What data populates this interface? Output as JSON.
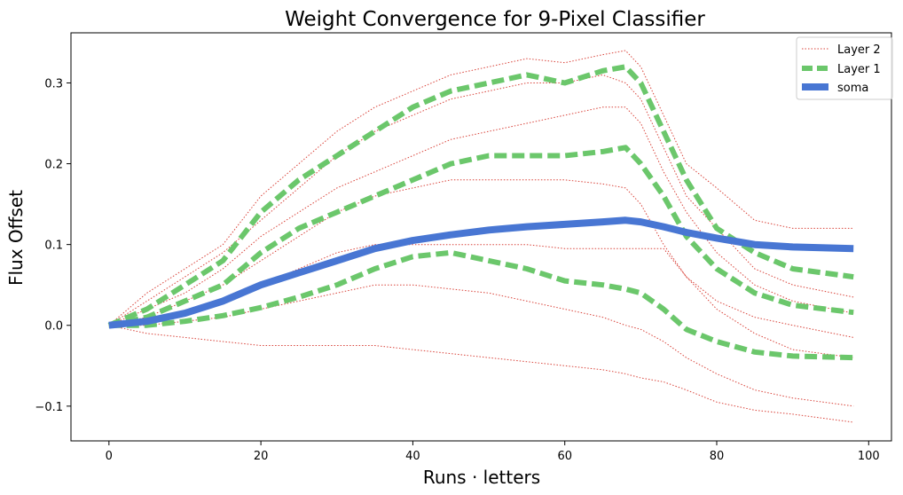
{
  "chart_data": {
    "type": "line",
    "title": "Weight Convergence for 9-Pixel Classifier",
    "xlabel": "Runs · letters",
    "ylabel": "Flux Offset",
    "xlim": [
      -5,
      103
    ],
    "ylim": [
      -0.143,
      0.362
    ],
    "xticks": [
      0,
      20,
      40,
      60,
      80,
      100
    ],
    "yticks": [
      -0.1,
      0.0,
      0.1,
      0.2,
      0.3
    ],
    "ytick_labels": [
      "−0.1",
      "0.0",
      "0.1",
      "0.2",
      "0.3"
    ],
    "grid": false,
    "legend_placement": "top-right",
    "colors": {
      "layer2": "#d9433a",
      "layer1": "#6bc76b",
      "soma": "#4876d3"
    },
    "series": [
      {
        "name": "Layer 2",
        "style": "dotted",
        "color": "#d9433a",
        "lines": [
          {
            "x": [
              0,
              5,
              10,
              15,
              20,
              25,
              30,
              35,
              40,
              45,
              50,
              55,
              60,
              65,
              68,
              70,
              73,
              76,
              80,
              85,
              90,
              98
            ],
            "y": [
              0,
              0.04,
              0.07,
              0.1,
              0.16,
              0.2,
              0.24,
              0.27,
              0.29,
              0.31,
              0.32,
              0.33,
              0.325,
              0.335,
              0.34,
              0.32,
              0.26,
              0.2,
              0.17,
              0.13,
              0.12,
              0.12
            ]
          },
          {
            "x": [
              0,
              5,
              10,
              15,
              20,
              25,
              30,
              35,
              40,
              45,
              50,
              55,
              60,
              65,
              68,
              70,
              73,
              76,
              80,
              85,
              90,
              98
            ],
            "y": [
              0,
              0.03,
              0.06,
              0.09,
              0.13,
              0.17,
              0.21,
              0.24,
              0.26,
              0.28,
              0.29,
              0.3,
              0.3,
              0.31,
              0.3,
              0.28,
              0.22,
              0.16,
              0.12,
              0.07,
              0.05,
              0.035
            ]
          },
          {
            "x": [
              0,
              5,
              10,
              15,
              20,
              25,
              30,
              35,
              40,
              45,
              50,
              55,
              60,
              65,
              68,
              70,
              73,
              76,
              80,
              85,
              90,
              98
            ],
            "y": [
              0,
              0.02,
              0.04,
              0.07,
              0.11,
              0.14,
              0.17,
              0.19,
              0.21,
              0.23,
              0.24,
              0.25,
              0.26,
              0.27,
              0.27,
              0.25,
              0.19,
              0.14,
              0.09,
              0.05,
              0.03,
              0.015
            ]
          },
          {
            "x": [
              0,
              5,
              10,
              15,
              20,
              25,
              30,
              35,
              40,
              45,
              50,
              55,
              60,
              65,
              68,
              70,
              73,
              76,
              80,
              85,
              90,
              98
            ],
            "y": [
              0,
              0.01,
              0.03,
              0.05,
              0.08,
              0.11,
              0.14,
              0.16,
              0.17,
              0.18,
              0.18,
              0.18,
              0.18,
              0.175,
              0.17,
              0.15,
              0.1,
              0.06,
              0.03,
              0.01,
              0.0,
              -0.015
            ]
          },
          {
            "x": [
              0,
              5,
              10,
              15,
              20,
              25,
              30,
              35,
              40,
              45,
              50,
              55,
              60,
              65,
              68,
              70,
              73,
              76,
              80,
              85,
              90,
              98
            ],
            "y": [
              0,
              0.005,
              0.015,
              0.03,
              0.05,
              0.07,
              0.09,
              0.1,
              0.1,
              0.1,
              0.1,
              0.1,
              0.095,
              0.095,
              0.095,
              0.095,
              0.095,
              0.06,
              0.02,
              -0.01,
              -0.03,
              -0.04
            ]
          },
          {
            "x": [
              0,
              5,
              10,
              15,
              20,
              25,
              30,
              35,
              40,
              45,
              50,
              55,
              60,
              65,
              68,
              70,
              73,
              76,
              80,
              85,
              90,
              98
            ],
            "y": [
              0,
              0.0,
              0.005,
              0.01,
              0.02,
              0.03,
              0.04,
              0.05,
              0.05,
              0.045,
              0.04,
              0.03,
              0.02,
              0.01,
              0.0,
              -0.005,
              -0.02,
              -0.04,
              -0.06,
              -0.08,
              -0.09,
              -0.1
            ]
          },
          {
            "x": [
              0,
              5,
              10,
              15,
              20,
              25,
              30,
              35,
              40,
              45,
              50,
              55,
              60,
              65,
              68,
              70,
              73,
              76,
              80,
              85,
              90,
              98
            ],
            "y": [
              0,
              -0.01,
              -0.015,
              -0.02,
              -0.025,
              -0.025,
              -0.025,
              -0.025,
              -0.03,
              -0.035,
              -0.04,
              -0.045,
              -0.05,
              -0.055,
              -0.06,
              -0.065,
              -0.07,
              -0.08,
              -0.095,
              -0.105,
              -0.11,
              -0.12
            ]
          }
        ]
      },
      {
        "name": "Layer 1",
        "style": "dashed",
        "color": "#6bc76b",
        "lines": [
          {
            "x": [
              0,
              5,
              10,
              15,
              20,
              25,
              30,
              35,
              40,
              45,
              50,
              55,
              60,
              65,
              68,
              70,
              73,
              76,
              80,
              85,
              90,
              98
            ],
            "y": [
              0,
              0.02,
              0.05,
              0.08,
              0.14,
              0.18,
              0.21,
              0.24,
              0.27,
              0.29,
              0.3,
              0.31,
              0.3,
              0.315,
              0.32,
              0.3,
              0.24,
              0.18,
              0.12,
              0.09,
              0.07,
              0.06
            ]
          },
          {
            "x": [
              0,
              5,
              10,
              15,
              20,
              25,
              30,
              35,
              40,
              45,
              50,
              55,
              60,
              65,
              68,
              70,
              73,
              76,
              80,
              85,
              90,
              98
            ],
            "y": [
              0,
              0.01,
              0.03,
              0.05,
              0.09,
              0.12,
              0.14,
              0.16,
              0.18,
              0.2,
              0.21,
              0.21,
              0.21,
              0.215,
              0.22,
              0.2,
              0.16,
              0.11,
              0.07,
              0.04,
              0.025,
              0.016
            ]
          },
          {
            "x": [
              0,
              5,
              10,
              15,
              20,
              25,
              30,
              35,
              40,
              45,
              50,
              55,
              60,
              65,
              68,
              70,
              73,
              76,
              80,
              85,
              90,
              98
            ],
            "y": [
              0,
              0.0,
              0.005,
              0.012,
              0.022,
              0.035,
              0.05,
              0.07,
              0.085,
              0.09,
              0.08,
              0.07,
              0.055,
              0.05,
              0.045,
              0.04,
              0.02,
              -0.005,
              -0.02,
              -0.033,
              -0.038,
              -0.04
            ]
          }
        ]
      },
      {
        "name": "soma",
        "style": "solid",
        "color": "#4876d3",
        "lines": [
          {
            "x": [
              0,
              5,
              10,
              15,
              20,
              25,
              30,
              35,
              40,
              45,
              50,
              55,
              60,
              65,
              68,
              70,
              73,
              76,
              80,
              85,
              90,
              98
            ],
            "y": [
              0,
              0.005,
              0.015,
              0.03,
              0.05,
              0.065,
              0.08,
              0.095,
              0.105,
              0.112,
              0.118,
              0.122,
              0.125,
              0.128,
              0.13,
              0.128,
              0.122,
              0.115,
              0.108,
              0.1,
              0.097,
              0.095
            ]
          }
        ]
      }
    ]
  }
}
